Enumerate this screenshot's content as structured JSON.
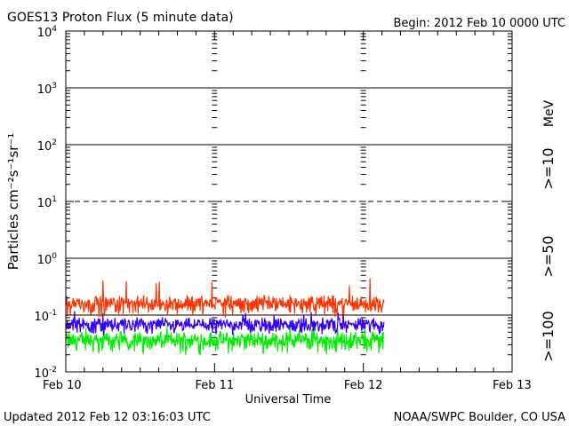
{
  "chart_data": {
    "type": "line",
    "title": "GOES13 Proton Flux (5 minute data)",
    "begin": "Begin: 2012 Feb 10 0000 UTC",
    "xlabel": "Universal Time",
    "ylabel": "Particles cm⁻²s⁻¹sr⁻¹",
    "yscale": "log",
    "ylim": [
      0.01,
      10000
    ],
    "xlim": [
      0,
      72
    ],
    "x_units": "hours since 2012 Feb 10 0000 UTC",
    "data_end_hour": 51.3,
    "x_ticks": [
      {
        "hour": 0,
        "label": "Feb 10"
      },
      {
        "hour": 24,
        "label": "Feb 11"
      },
      {
        "hour": 48,
        "label": "Feb 12"
      },
      {
        "hour": 72,
        "label": "Feb 13"
      }
    ],
    "y_ticks": [
      {
        "exp": 4,
        "base": "10",
        "sup": "4"
      },
      {
        "exp": 3,
        "base": "10",
        "sup": "3"
      },
      {
        "exp": 2,
        "base": "10",
        "sup": "2"
      },
      {
        "exp": 1,
        "base": "10",
        "sup": "1"
      },
      {
        "exp": 0,
        "base": "10",
        "sup": "0"
      },
      {
        "exp": -1,
        "base": "10",
        "sup": "-1"
      },
      {
        "exp": -2,
        "base": "10",
        "sup": "-2"
      }
    ],
    "threshold_line": 10,
    "units_label": "MeV",
    "series": [
      {
        "name": ">=10",
        "label": ">=10",
        "color": "#ff3300",
        "base": 0.16,
        "spread": 0.045,
        "peak": 0.45
      },
      {
        "name": ">=50",
        "label": ">=50",
        "color": "#3300ff",
        "base": 0.068,
        "spread": 0.016,
        "peak": 0.12
      },
      {
        "name": ">=100",
        "label": ">=100",
        "color": "#00ee00",
        "base": 0.036,
        "spread": 0.011,
        "peak": 0.065
      }
    ]
  },
  "footer": {
    "updated": "Updated 2012 Feb 12 03:16:03 UTC",
    "credit": "NOAA/SWPC Boulder, CO USA"
  }
}
